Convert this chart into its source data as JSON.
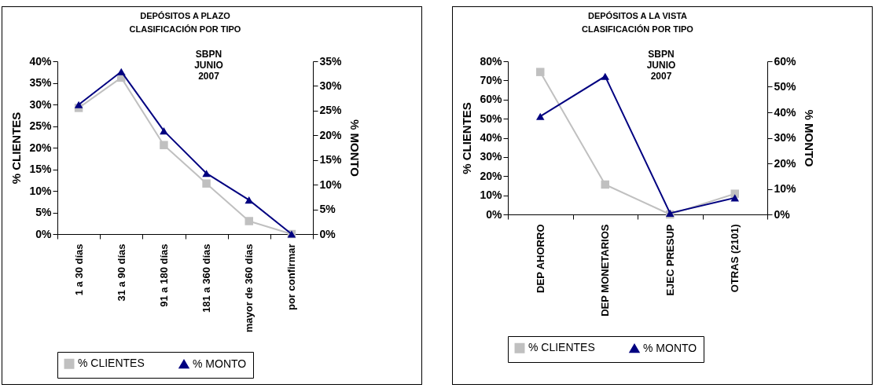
{
  "chart_data": [
    {
      "type": "line",
      "title": "DEPÓSITOS A PLAZO",
      "subtitle": "CLASIFICACIÓN POR TIPO",
      "ylabel": "% CLIENTES",
      "y2label": "% MONTO",
      "annotations": [
        "SBPN\nJUNIO\n2007"
      ],
      "categories": [
        "1 a 30 días",
        "31 a 90 días",
        "91 a 180 días",
        "181 a 360 días",
        "mayor de 360 días",
        "por confirmar"
      ],
      "series": [
        {
          "name": "% CLIENTES",
          "color": "#c0c0c0",
          "marker": "square",
          "values": [
            29.2,
            36.2,
            20.6,
            11.7,
            3.0,
            0
          ]
        },
        {
          "name": "% MONTO",
          "color": "#000080",
          "marker": "triangle",
          "axis": "y2",
          "values": [
            26.2,
            32.9,
            20.9,
            12.3,
            6.9,
            0
          ]
        }
      ],
      "ylim": [
        0,
        40
      ],
      "yticks": [
        {
          "value": 0,
          "label": "0%"
        },
        {
          "value": 5,
          "label": "5%"
        },
        {
          "value": 10,
          "label": "10%"
        },
        {
          "value": 15,
          "label": "15%"
        },
        {
          "value": 20,
          "label": "20%"
        },
        {
          "value": 25,
          "label": "25%"
        },
        {
          "value": 30,
          "label": "30%"
        },
        {
          "value": 35,
          "label": "35%"
        },
        {
          "value": 40,
          "label": "40%"
        }
      ],
      "y2lim": [
        0,
        35
      ],
      "y2ticks": [
        {
          "value": 0,
          "label": "0%"
        },
        {
          "value": 5,
          "label": "5%"
        },
        {
          "value": 10,
          "label": "10%"
        },
        {
          "value": 15,
          "label": "15%"
        },
        {
          "value": 20,
          "label": "20%"
        },
        {
          "value": 25,
          "label": "25%"
        },
        {
          "value": 30,
          "label": "30%"
        },
        {
          "value": 35,
          "label": "35%"
        }
      ],
      "grid": false,
      "legend": "bottom"
    },
    {
      "type": "line",
      "title": "DEPÓSITOS A LA VISTA",
      "subtitle": "CLASIFICACIÓN POR TIPO",
      "ylabel": "% CLIENTES",
      "y2label": "% MONTO",
      "annotations": [
        "SBPN\nJUNIO\n2007"
      ],
      "categories": [
        "DEP AHORRO",
        "DEP MONETARIOS",
        "EJEC PRESUP",
        "OTRAS (2101)"
      ],
      "series": [
        {
          "name": "% CLIENTES",
          "color": "#c0c0c0",
          "marker": "square",
          "values": [
            74.4,
            15.6,
            0,
            10.8
          ]
        },
        {
          "name": "% MONTO",
          "color": "#000080",
          "marker": "triangle",
          "axis": "y2",
          "values": [
            38.4,
            54.1,
            0.5,
            6.5
          ]
        }
      ],
      "ylim": [
        0,
        80
      ],
      "yticks": [
        {
          "value": 0,
          "label": "0%"
        },
        {
          "value": 10,
          "label": "10%"
        },
        {
          "value": 20,
          "label": "20%"
        },
        {
          "value": 30,
          "label": "30%"
        },
        {
          "value": 40,
          "label": "40%"
        },
        {
          "value": 50,
          "label": "50%"
        },
        {
          "value": 60,
          "label": "60%"
        },
        {
          "value": 70,
          "label": "70%"
        },
        {
          "value": 80,
          "label": "80%"
        }
      ],
      "y2lim": [
        0,
        60
      ],
      "y2ticks": [
        {
          "value": 0,
          "label": "0%"
        },
        {
          "value": 10,
          "label": "10%"
        },
        {
          "value": 20,
          "label": "20%"
        },
        {
          "value": 30,
          "label": "30%"
        },
        {
          "value": 40,
          "label": "40%"
        },
        {
          "value": 50,
          "label": "50%"
        },
        {
          "value": 60,
          "label": "60%"
        }
      ],
      "grid": false,
      "legend": "bottom"
    }
  ]
}
